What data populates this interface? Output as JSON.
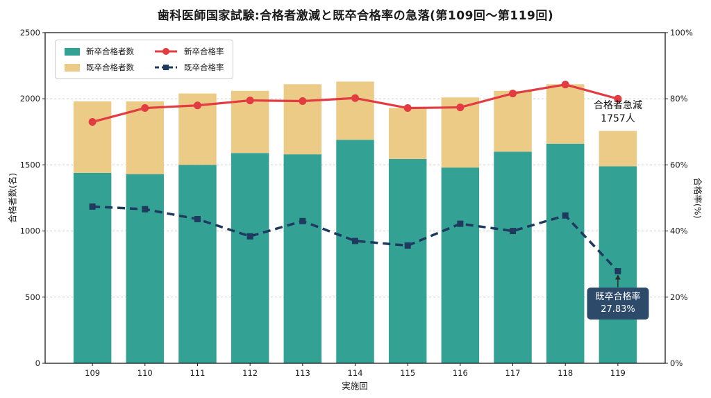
{
  "chart_data": {
    "type": "combo-stacked-bar-line",
    "title": "歯科医師国家試験:合格者激減と既卒合格率の急落(第109回〜第119回)",
    "xlabel": "実施回",
    "ylabel_left": "合格者数(名)",
    "ylabel_right": "合格率(%)",
    "categories": [
      "109",
      "110",
      "111",
      "112",
      "113",
      "114",
      "115",
      "116",
      "117",
      "118",
      "119"
    ],
    "left_axis": {
      "min": 0,
      "max": 2500,
      "ticks": [
        0,
        500,
        1000,
        1500,
        2000,
        2500
      ],
      "tick_labels": [
        "0",
        "500",
        "1000",
        "1500",
        "2000",
        "2500"
      ]
    },
    "right_axis": {
      "min": 0,
      "max": 100,
      "ticks": [
        0,
        20,
        40,
        60,
        80,
        100
      ],
      "tick_labels": [
        "0%",
        "20%",
        "40%",
        "60%",
        "80%",
        "100%"
      ]
    },
    "bar_series": [
      {
        "name": "新卒合格者数",
        "color": "#33a294",
        "values": [
          1440,
          1430,
          1500,
          1590,
          1580,
          1690,
          1545,
          1480,
          1600,
          1660,
          1490
        ]
      },
      {
        "name": "既卒合格者数",
        "color": "#eccb87",
        "values": [
          540,
          550,
          540,
          470,
          530,
          440,
          385,
          530,
          460,
          450,
          267
        ]
      }
    ],
    "line_series": [
      {
        "name": "新卒合格率",
        "color": "#e23b41",
        "style": "solid",
        "marker": "circle",
        "values": [
          73.0,
          77.2,
          78.0,
          79.5,
          79.3,
          80.2,
          77.2,
          77.4,
          81.6,
          84.3,
          80.0
        ]
      },
      {
        "name": "既卒合格率",
        "color": "#1e3a5f",
        "style": "dashed",
        "marker": "square",
        "values": [
          47.4,
          46.6,
          43.6,
          38.4,
          43.0,
          37.0,
          35.6,
          42.2,
          40.0,
          44.7,
          27.83
        ]
      }
    ],
    "annotations": [
      {
        "id": "passers-drop",
        "lines": [
          "合格者急減",
          "1757人"
        ],
        "color": "#111111"
      },
      {
        "id": "kisotsu-rate",
        "lines": [
          "既卒合格率",
          "27.83%"
        ],
        "bg": "#2d4a6a",
        "color": "#ffffff"
      }
    ],
    "grid": true,
    "legend_position": "upper-left"
  }
}
